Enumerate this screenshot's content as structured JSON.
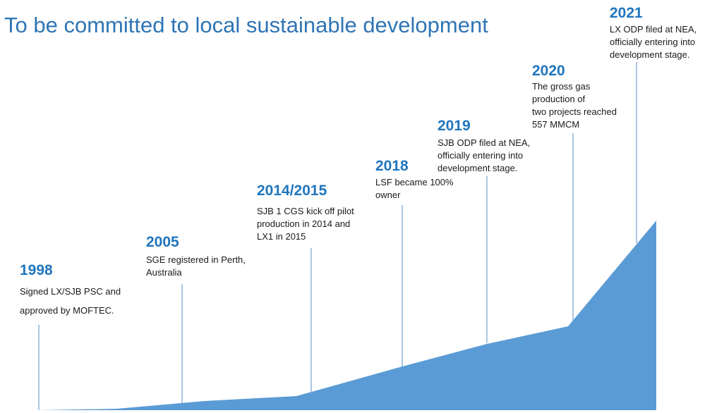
{
  "title": "To be committed to local sustainable development",
  "colors": {
    "title": "#2f75b5",
    "year": "#2175bd",
    "area": "#5b9bd5",
    "line": "#7fa9d6"
  },
  "milestones": [
    {
      "year": "1998",
      "lines": [
        "Signed LX/SJB PSC and",
        "approved by MOFTEC."
      ]
    },
    {
      "year": "2005",
      "lines": [
        "SGE registered in Perth,",
        "Australia"
      ]
    },
    {
      "year": "2014/2015",
      "lines": [
        "SJB 1 CGS kick off pilot",
        "production in 2014 and",
        "LX1  in 2015"
      ]
    },
    {
      "year": "2018",
      "lines": [
        "LSF became 100%",
        "owner"
      ]
    },
    {
      "year": "2019",
      "lines": [
        "SJB ODP filed at NEA,",
        "officially entering into",
        "development stage."
      ]
    },
    {
      "year": "2020",
      "lines": [
        "The gross gas",
        "production of",
        "two projects reached",
        "557 MMCM"
      ]
    },
    {
      "year": "2021",
      "lines": [
        "LX ODP filed at NEA,",
        "officially entering into",
        "development stage."
      ]
    }
  ]
}
